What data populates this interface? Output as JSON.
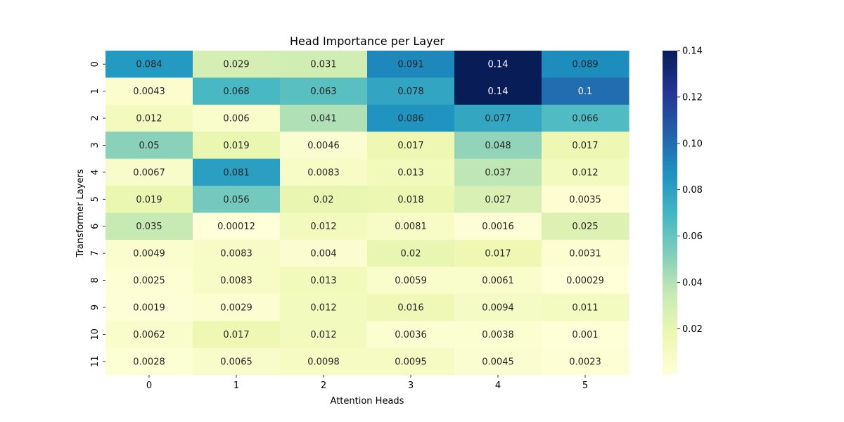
{
  "chart_data": {
    "type": "heatmap",
    "title": "Head Importance per Layer",
    "xlabel": "Attention Heads",
    "ylabel": "Transformer Layers",
    "x_categories": [
      "0",
      "1",
      "2",
      "3",
      "4",
      "5"
    ],
    "y_categories": [
      "0",
      "1",
      "2",
      "3",
      "4",
      "5",
      "6",
      "7",
      "8",
      "9",
      "10",
      "11"
    ],
    "values": [
      [
        0.084,
        0.029,
        0.031,
        0.091,
        0.14,
        0.089
      ],
      [
        0.0043,
        0.068,
        0.063,
        0.078,
        0.14,
        0.1
      ],
      [
        0.012,
        0.006,
        0.041,
        0.086,
        0.077,
        0.066
      ],
      [
        0.05,
        0.019,
        0.0046,
        0.017,
        0.048,
        0.017
      ],
      [
        0.0067,
        0.081,
        0.0083,
        0.013,
        0.037,
        0.012
      ],
      [
        0.019,
        0.056,
        0.02,
        0.018,
        0.027,
        0.0035
      ],
      [
        0.035,
        0.00012,
        0.012,
        0.0081,
        0.0016,
        0.025
      ],
      [
        0.0049,
        0.0083,
        0.004,
        0.02,
        0.017,
        0.0031
      ],
      [
        0.0025,
        0.0083,
        0.013,
        0.0059,
        0.0061,
        0.00029
      ],
      [
        0.0019,
        0.0029,
        0.012,
        0.016,
        0.0094,
        0.011
      ],
      [
        0.0062,
        0.017,
        0.012,
        0.0036,
        0.0038,
        0.001
      ],
      [
        0.0028,
        0.0065,
        0.0098,
        0.0095,
        0.0045,
        0.0023
      ]
    ],
    "cell_labels": [
      [
        "0.084",
        "0.029",
        "0.031",
        "0.091",
        "0.14",
        "0.089"
      ],
      [
        "0.0043",
        "0.068",
        "0.063",
        "0.078",
        "0.14",
        "0.1"
      ],
      [
        "0.012",
        "0.006",
        "0.041",
        "0.086",
        "0.077",
        "0.066"
      ],
      [
        "0.05",
        "0.019",
        "0.0046",
        "0.017",
        "0.048",
        "0.017"
      ],
      [
        "0.0067",
        "0.081",
        "0.0083",
        "0.013",
        "0.037",
        "0.012"
      ],
      [
        "0.019",
        "0.056",
        "0.02",
        "0.018",
        "0.027",
        "0.0035"
      ],
      [
        "0.035",
        "0.00012",
        "0.012",
        "0.0081",
        "0.0016",
        "0.025"
      ],
      [
        "0.0049",
        "0.0083",
        "0.004",
        "0.02",
        "0.017",
        "0.0031"
      ],
      [
        "0.0025",
        "0.0083",
        "0.013",
        "0.0059",
        "0.0061",
        "0.00029"
      ],
      [
        "0.0019",
        "0.0029",
        "0.012",
        "0.016",
        "0.0094",
        "0.011"
      ],
      [
        "0.0062",
        "0.017",
        "0.012",
        "0.0036",
        "0.0038",
        "0.001"
      ],
      [
        "0.0028",
        "0.0065",
        "0.0098",
        "0.0095",
        "0.0045",
        "0.0023"
      ]
    ],
    "colormap": "YlGnBu",
    "color_range": [
      0.00012,
      0.14
    ],
    "colorbar": {
      "ticks": [
        0.02,
        0.04,
        0.06,
        0.08,
        0.1,
        0.12,
        0.14
      ],
      "tick_labels": [
        "0.02",
        "0.04",
        "0.06",
        "0.08",
        "0.10",
        "0.12",
        "0.14"
      ],
      "placement": "right"
    },
    "grid": false
  }
}
